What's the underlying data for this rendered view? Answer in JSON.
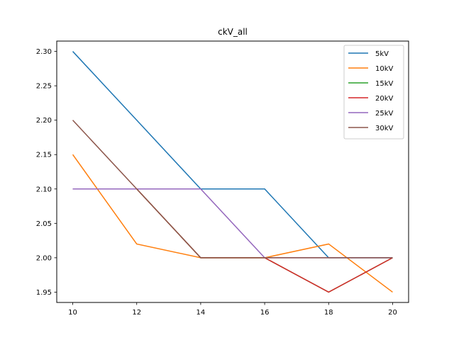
{
  "chart_data": {
    "type": "line",
    "title": "ckV_all",
    "xlabel": "",
    "ylabel": "",
    "x": [
      10,
      12,
      14,
      16,
      18,
      20
    ],
    "xlim": [
      9.5,
      20.5
    ],
    "ylim": [
      1.935,
      2.315
    ],
    "xticks": [
      "10",
      "12",
      "14",
      "16",
      "18",
      "20"
    ],
    "yticks": [
      "1.95",
      "2.00",
      "2.05",
      "2.10",
      "2.15",
      "2.20",
      "2.25",
      "2.30"
    ],
    "grid": false,
    "legend_position": "top-right",
    "series": [
      {
        "name": "5kV",
        "color": "#1f77b4",
        "values": [
          2.3,
          2.2,
          2.1,
          2.1,
          2.0,
          2.0
        ]
      },
      {
        "name": "10kV",
        "color": "#ff7f0e",
        "values": [
          2.15,
          2.02,
          2.0,
          2.0,
          2.02,
          1.95
        ]
      },
      {
        "name": "15kV",
        "color": "#2ca02c",
        "values": [
          2.1,
          2.1,
          2.0,
          2.0,
          1.95,
          2.0
        ]
      },
      {
        "name": "20kV",
        "color": "#d62728",
        "values": [
          2.1,
          2.1,
          2.0,
          2.0,
          1.95,
          2.0
        ]
      },
      {
        "name": "25kV",
        "color": "#9467bd",
        "values": [
          2.1,
          2.1,
          2.1,
          2.0,
          2.0,
          2.0
        ]
      },
      {
        "name": "30kV",
        "color": "#8c564b",
        "values": [
          2.2,
          2.1,
          2.0,
          2.0,
          2.0,
          2.0
        ]
      }
    ]
  }
}
